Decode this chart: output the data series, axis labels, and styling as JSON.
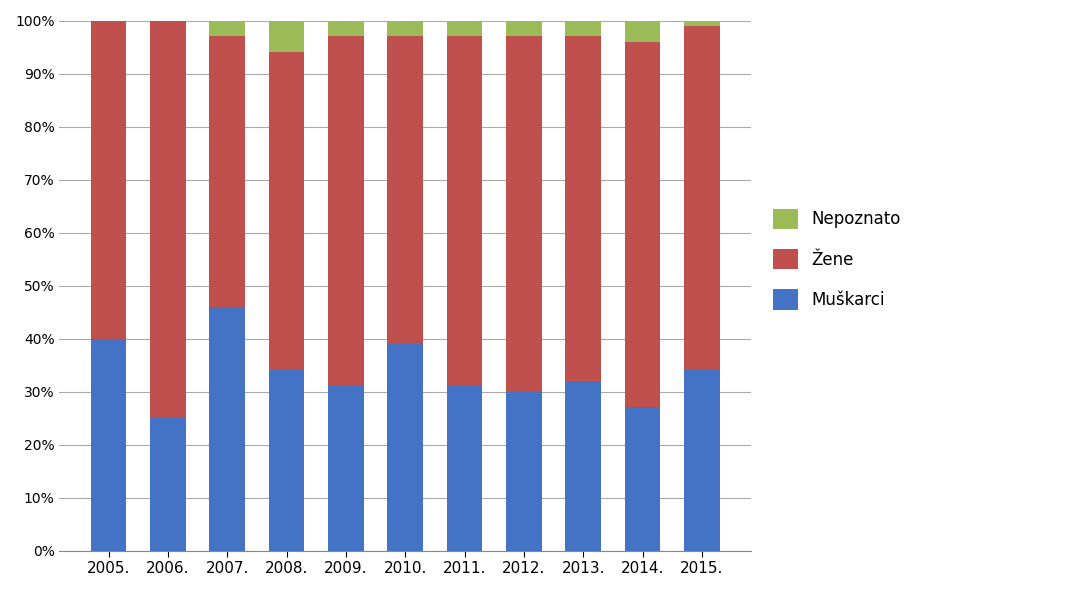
{
  "years": [
    "2005.",
    "2006.",
    "2007.",
    "2008.",
    "2009.",
    "2010.",
    "2011.",
    "2012.",
    "2013.",
    "2014.",
    "2015."
  ],
  "muskarci": [
    0.4,
    0.25,
    0.46,
    0.34,
    0.31,
    0.39,
    0.31,
    0.3,
    0.32,
    0.27,
    0.34
  ],
  "zene": [
    0.6,
    0.75,
    0.51,
    0.6,
    0.66,
    0.58,
    0.66,
    0.67,
    0.65,
    0.69,
    0.65
  ],
  "nepoznato": [
    0.0,
    0.0,
    0.03,
    0.06,
    0.03,
    0.03,
    0.03,
    0.03,
    0.03,
    0.04,
    0.01
  ],
  "color_muskarci": "#4472C4",
  "color_zene": "#C0504D",
  "color_nepoznato": "#9BBB59",
  "legend_labels": [
    "Nepoznato",
    "Žene",
    "Muškarci"
  ],
  "background_color": "#FFFFFF",
  "grid_color": "#AAAAAA",
  "bar_width": 0.6
}
